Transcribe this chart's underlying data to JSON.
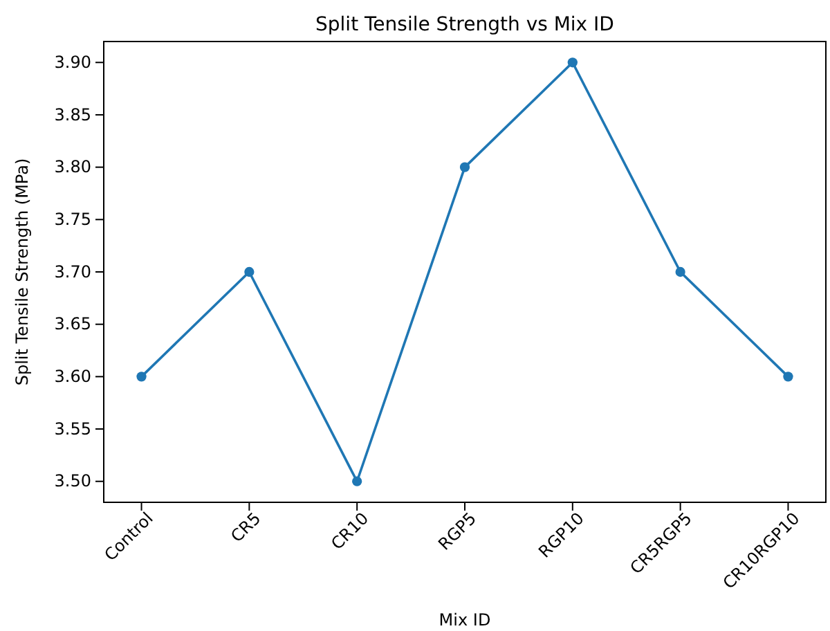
{
  "chart_data": {
    "type": "line",
    "title": "Split Tensile Strength vs Mix ID",
    "xlabel": "Mix ID",
    "ylabel": "Split Tensile Strength (MPa)",
    "categories": [
      "Control",
      "CR5",
      "CR10",
      "RGP5",
      "RGP10",
      "CR5RGP5",
      "CR10RGP10"
    ],
    "series": [
      {
        "color": "#1f77b4",
        "values": [
          3.6,
          3.7,
          3.5,
          3.8,
          3.9,
          3.7,
          3.6
        ]
      }
    ],
    "ylim": [
      3.48,
      3.92
    ],
    "yticks": [
      {
        "value": 3.5,
        "label": "3.50"
      },
      {
        "value": 3.55,
        "label": "3.55"
      },
      {
        "value": 3.6,
        "label": "3.60"
      },
      {
        "value": 3.65,
        "label": "3.65"
      },
      {
        "value": 3.7,
        "label": "3.70"
      },
      {
        "value": 3.75,
        "label": "3.75"
      },
      {
        "value": 3.8,
        "label": "3.80"
      },
      {
        "value": 3.85,
        "label": "3.85"
      },
      {
        "value": 3.9,
        "label": "3.90"
      }
    ],
    "marker": "circle",
    "line_style": "solid"
  }
}
